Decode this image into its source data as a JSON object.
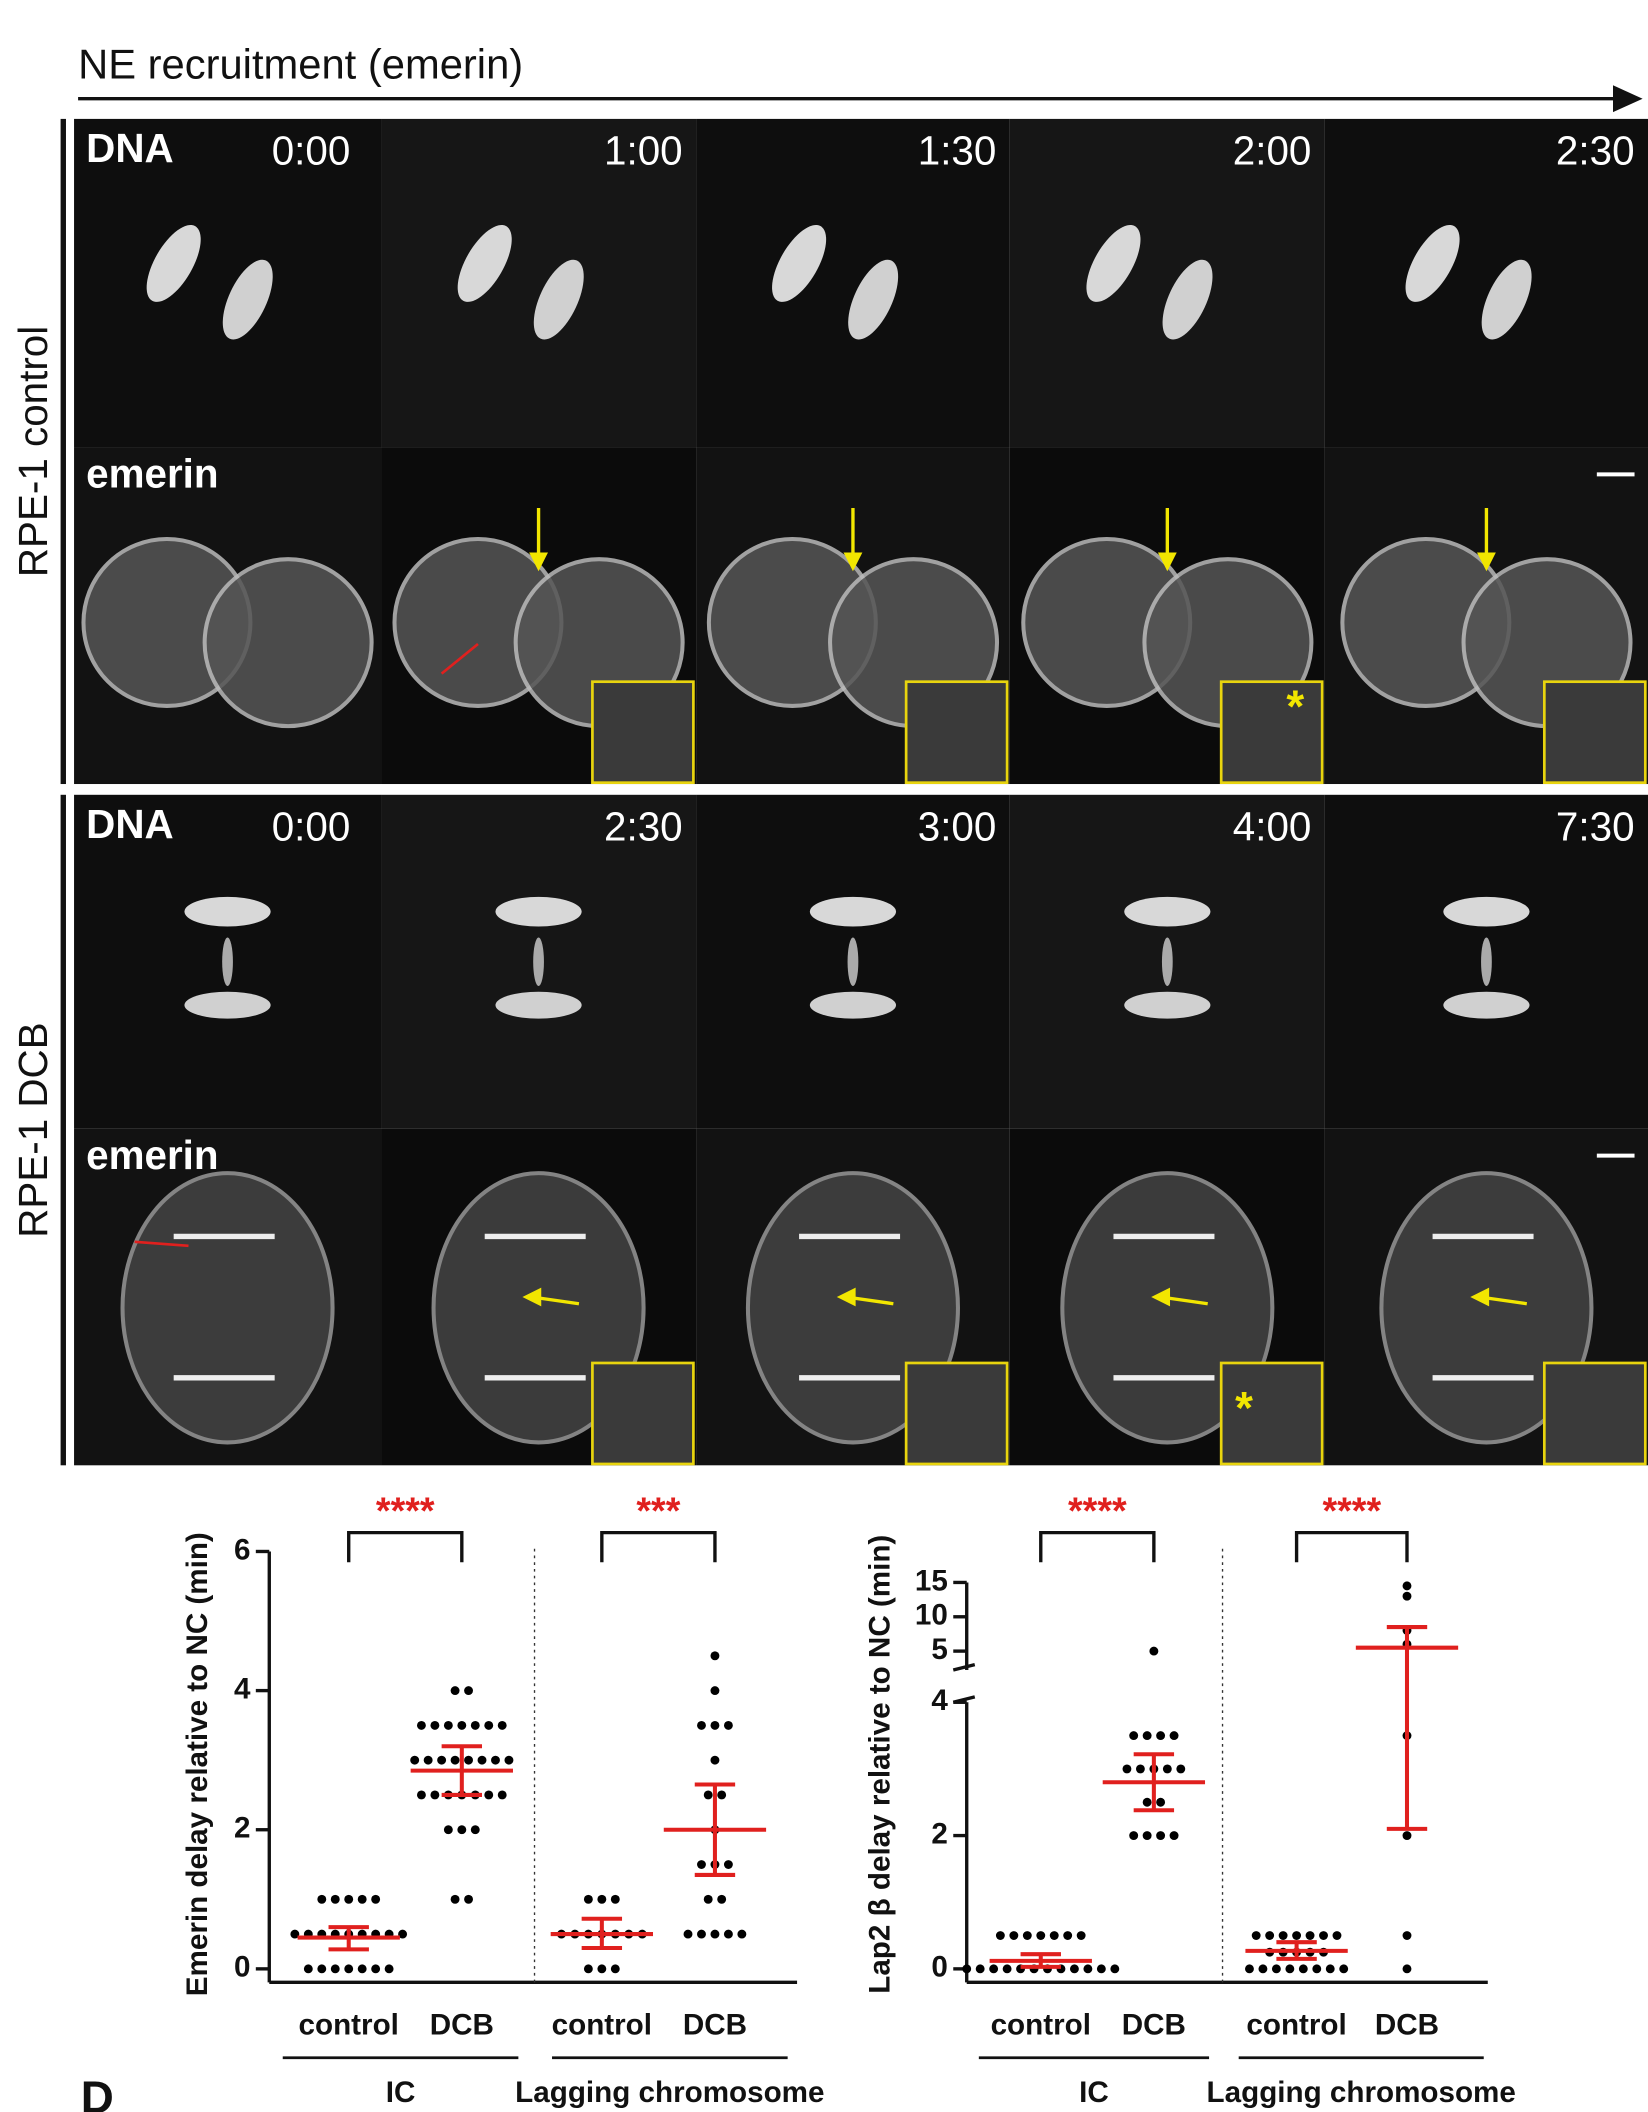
{
  "figure": {
    "title": "NE recruitment (emerin)",
    "panel_letter": "D",
    "inset_marker": "*",
    "rows": [
      {
        "label": "RPE-1 control",
        "channels": [
          "DNA",
          "emerin"
        ],
        "times": [
          "0:00",
          "1:00",
          "1:30",
          "2:00",
          "2:30"
        ]
      },
      {
        "label": "RPE-1 DCB",
        "channels": [
          "DNA",
          "emerin"
        ],
        "times": [
          "0:00",
          "2:30",
          "3:00",
          "4:00",
          "7:30"
        ]
      }
    ]
  },
  "chart_data": [
    {
      "type": "dot",
      "ylabel": "Emerin delay relative to NC (min)",
      "ylim": [
        0,
        6
      ],
      "yticks": [
        0,
        2,
        4,
        6
      ],
      "categories": [
        "control",
        "DCB",
        "control",
        "DCB"
      ],
      "groups": [
        "IC",
        "Lagging chromosome"
      ],
      "significance": [
        "****",
        "***"
      ],
      "point_color": "#000000",
      "summary_color": "#e0201e",
      "points": [
        [
          1,
          1,
          1,
          1,
          1,
          0.5,
          0.5,
          0.5,
          0.5,
          0.5,
          0.5,
          0.5,
          0.5,
          0.5,
          0,
          0,
          0,
          0,
          0,
          0,
          0
        ],
        [
          4,
          4,
          3.5,
          3.5,
          3.5,
          3.5,
          3.5,
          3.5,
          3.5,
          3,
          3,
          3,
          3,
          3,
          3,
          3,
          3,
          2.5,
          2.5,
          2.5,
          2.5,
          2.5,
          2.5,
          2.5,
          2,
          2,
          2,
          1,
          1
        ],
        [
          1,
          1,
          1,
          0.5,
          0.5,
          0.5,
          0.5,
          0.5,
          0.5,
          0.5,
          0,
          0,
          0
        ],
        [
          4.5,
          4,
          3.5,
          3.5,
          3.5,
          3,
          2.5,
          2.5,
          2,
          1.5,
          1.5,
          1.5,
          1,
          1,
          0.5,
          0.5,
          0.5,
          0.5,
          0.5
        ]
      ],
      "means": [
        0.45,
        2.85,
        0.5,
        2.0
      ],
      "errors_low": [
        0.28,
        2.5,
        0.3,
        1.35
      ],
      "errors_high": [
        0.6,
        3.2,
        0.72,
        2.65
      ]
    },
    {
      "type": "dot",
      "ylabel": "Lap2 β delay relative to NC (min)",
      "ylim": [
        0,
        15
      ],
      "ybreak": [
        4,
        5
      ],
      "yticks": [
        0,
        2,
        4,
        5,
        10,
        15
      ],
      "categories": [
        "control",
        "DCB",
        "control",
        "DCB"
      ],
      "groups": [
        "IC",
        "Lagging chromosome"
      ],
      "significance": [
        "****",
        "****"
      ],
      "point_color": "#000000",
      "summary_color": "#e0201e",
      "points": [
        [
          0.5,
          0.5,
          0.5,
          0.5,
          0.5,
          0.5,
          0.5,
          0,
          0,
          0,
          0,
          0,
          0,
          0,
          0,
          0,
          0,
          0,
          0
        ],
        [
          5,
          3.5,
          3.5,
          3.5,
          3.5,
          3,
          3,
          3,
          3,
          3,
          2.5,
          2.5,
          2,
          2,
          2,
          2
        ],
        [
          0.5,
          0.5,
          0.5,
          0.5,
          0.5,
          0.5,
          0.5,
          0.25,
          0.25,
          0.25,
          0.25,
          0.25,
          0,
          0,
          0,
          0,
          0,
          0,
          0,
          0
        ],
        [
          14.5,
          13,
          8,
          6,
          3.5,
          2,
          0.5,
          0
        ]
      ],
      "means": [
        0.12,
        2.8,
        0.27,
        5.5
      ],
      "errors_low": [
        0.03,
        2.38,
        0.15,
        2.1
      ],
      "errors_high": [
        0.22,
        3.22,
        0.4,
        8.5
      ]
    }
  ]
}
